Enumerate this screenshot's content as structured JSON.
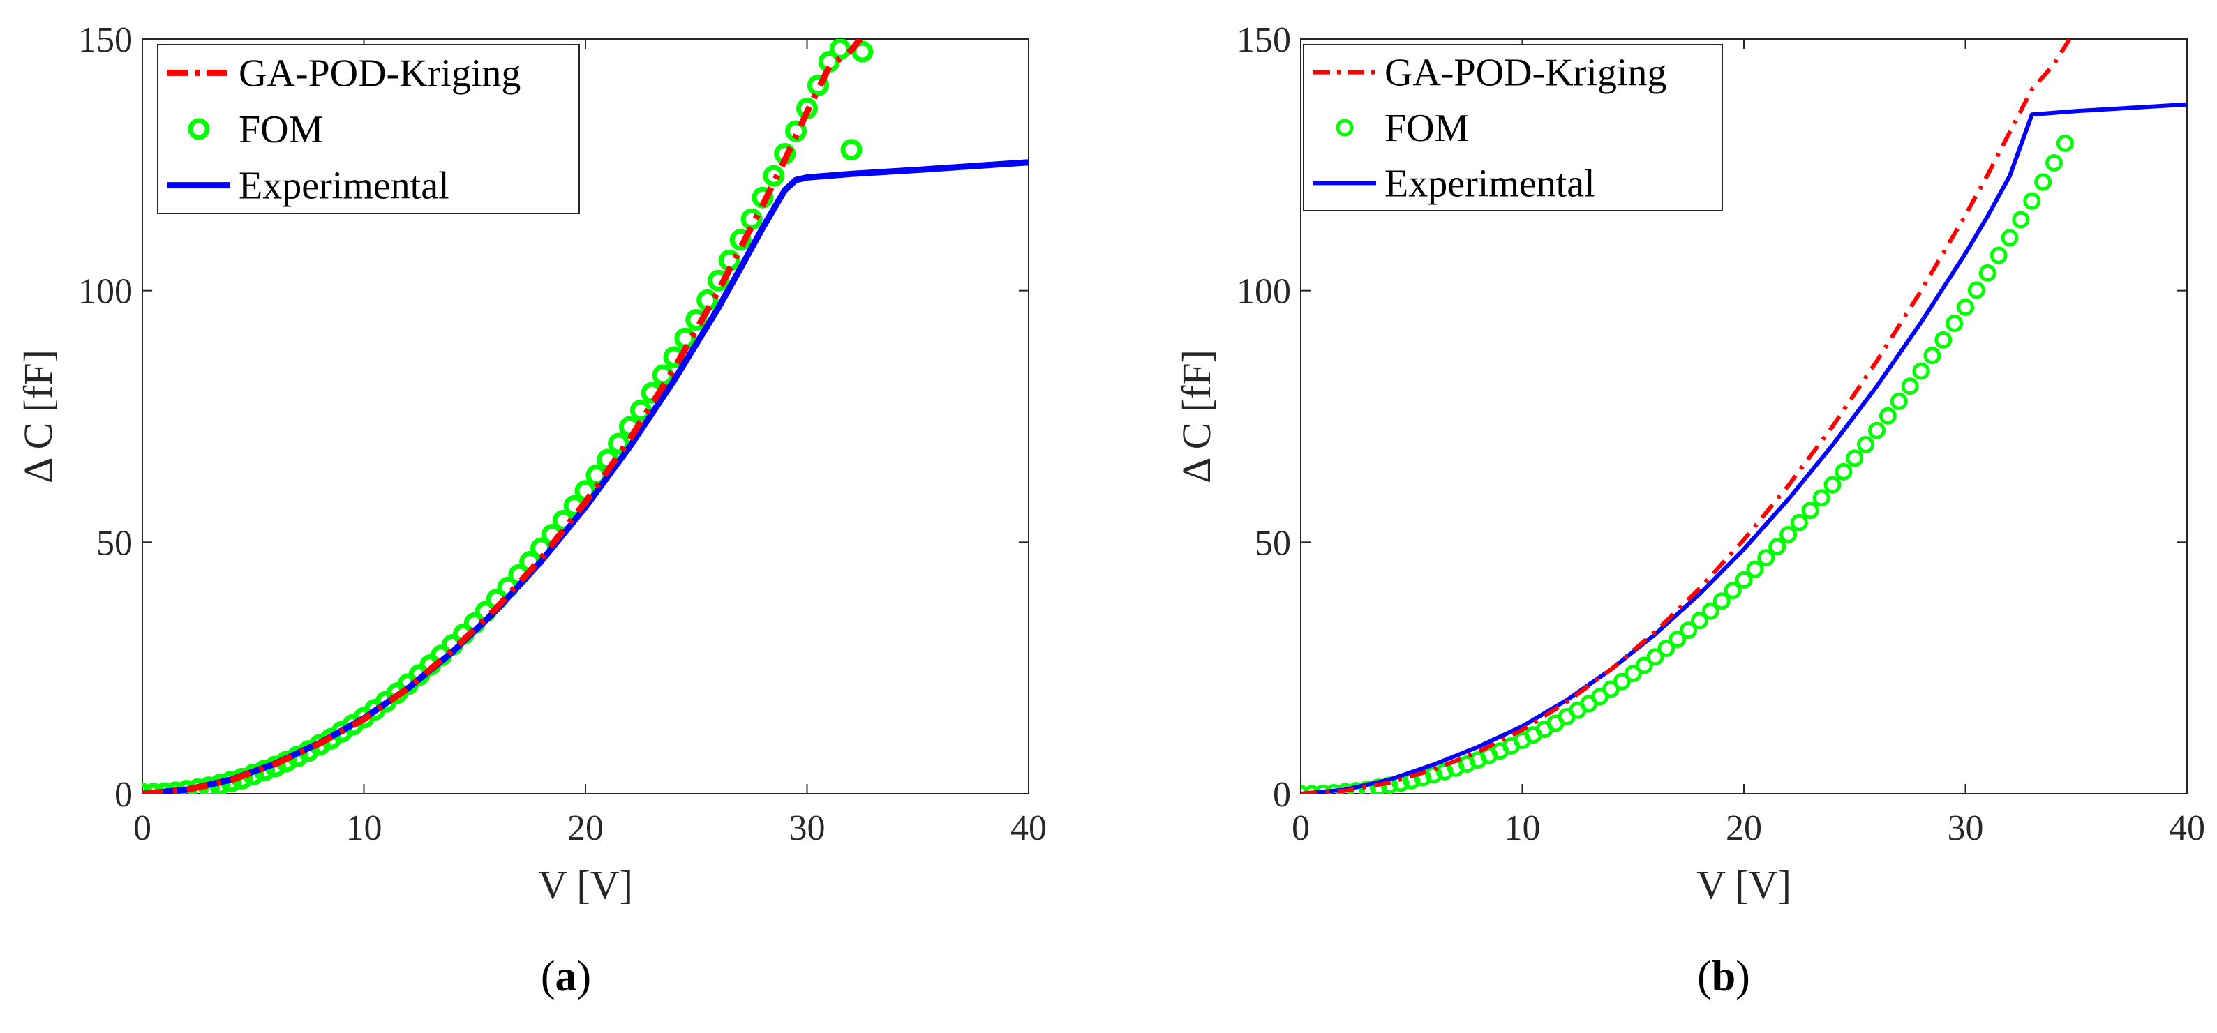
{
  "chart_data": [
    {
      "type": "line",
      "panel_label": "(a)",
      "xlabel": "V [V]",
      "ylabel": "Δ C [fF]",
      "xlim": [
        0,
        40
      ],
      "ylim": [
        0,
        150
      ],
      "xticks": [
        0,
        10,
        20,
        30,
        40
      ],
      "yticks": [
        0,
        50,
        100,
        150
      ],
      "grid": false,
      "legend_position": "top-left",
      "legend_line_width": "thick",
      "series": [
        {
          "name": "GA-POD-Kriging",
          "style": "dash-dot",
          "color": "#ff0000",
          "x": [
            0,
            2,
            4,
            6,
            8,
            10,
            12,
            14,
            16,
            18,
            20,
            22,
            24,
            26,
            28,
            29,
            30,
            31,
            32,
            32.4
          ],
          "y": [
            0,
            0.8,
            2.7,
            5.9,
            10.0,
            14.8,
            21.0,
            28.5,
            37.0,
            46.8,
            58.0,
            70.5,
            84.5,
            100.0,
            117.0,
            126.0,
            135.5,
            144.5,
            147.8,
            150.0
          ]
        },
        {
          "name": "FOM",
          "style": "circle-markers",
          "color": "#00ff00",
          "x": [
            0,
            0.5,
            1,
            1.5,
            2,
            2.5,
            3,
            3.5,
            4,
            4.5,
            5,
            5.5,
            6,
            6.5,
            7,
            7.5,
            8,
            8.5,
            9,
            9.5,
            10,
            10.5,
            11,
            11.5,
            12,
            12.5,
            13,
            13.5,
            14,
            14.5,
            15,
            15.5,
            16,
            16.5,
            17,
            17.5,
            18,
            18.5,
            19,
            19.5,
            20,
            20.5,
            21,
            21.5,
            22,
            22.5,
            23,
            23.5,
            24,
            24.5,
            25,
            25.5,
            26,
            26.5,
            27,
            27.5,
            28,
            28.5,
            29,
            29.5,
            30,
            30.5,
            31,
            31.5,
            32,
            32.5
          ],
          "y": [
            0.0,
            0.0,
            0.1,
            0.3,
            0.6,
            0.9,
            1.3,
            1.8,
            2.4,
            3.0,
            3.8,
            4.6,
            5.4,
            6.4,
            7.4,
            8.5,
            9.7,
            10.9,
            12.3,
            13.7,
            15.1,
            16.7,
            18.3,
            20.0,
            21.8,
            23.6,
            25.6,
            27.5,
            29.6,
            31.7,
            33.9,
            36.2,
            38.6,
            41.0,
            43.5,
            46.1,
            48.8,
            51.5,
            54.3,
            57.2,
            60.2,
            63.3,
            66.4,
            69.6,
            72.9,
            76.2,
            79.7,
            83.2,
            86.8,
            90.5,
            94.2,
            98.1,
            102.0,
            106.0,
            110.1,
            114.2,
            118.5,
            122.8,
            127.2,
            131.7,
            136.2,
            140.8,
            145.5,
            148.0,
            128.0,
            147.5
          ]
        },
        {
          "name": "Experimental",
          "style": "solid",
          "color": "#0000ff",
          "x": [
            0,
            2,
            4,
            6,
            8,
            10,
            12,
            14,
            16,
            18,
            20,
            22,
            24,
            26,
            27,
            28,
            29,
            29.5,
            30,
            32,
            35,
            40
          ],
          "y": [
            0,
            0.8,
            2.8,
            6.0,
            10.1,
            15.0,
            21.0,
            28.2,
            36.6,
            46.2,
            57.0,
            69.0,
            82.2,
            96.6,
            104.5,
            112.5,
            120.0,
            122.0,
            122.5,
            123.2,
            124.0,
            125.5
          ]
        }
      ]
    },
    {
      "type": "line",
      "panel_label": "(b)",
      "xlabel": "V [V]",
      "ylabel": "Δ C [fF]",
      "xlim": [
        0,
        40
      ],
      "ylim": [
        0,
        150
      ],
      "xticks": [
        0,
        10,
        20,
        30,
        40
      ],
      "yticks": [
        0,
        50,
        100,
        150
      ],
      "grid": false,
      "legend_position": "top-left",
      "legend_line_width": "thin",
      "series": [
        {
          "name": "GA-POD-Kriging",
          "style": "dash-dot",
          "color": "#ff0000",
          "x": [
            0,
            2,
            4,
            6,
            8,
            10,
            12,
            14,
            16,
            18,
            20,
            22,
            24,
            26,
            28,
            30,
            31,
            32,
            33,
            34,
            34.7
          ],
          "y": [
            0,
            0.6,
            2.2,
            4.8,
            8.3,
            12.7,
            18.2,
            24.7,
            32.2,
            40.8,
            50.5,
            61.2,
            73.0,
            86.0,
            100.0,
            115.0,
            123.0,
            131.5,
            140.0,
            145.0,
            150.0
          ]
        },
        {
          "name": "FOM",
          "style": "circle-markers",
          "color": "#00ff00",
          "x": [
            0,
            0.5,
            1,
            1.5,
            2,
            2.5,
            3,
            3.5,
            4,
            4.5,
            5,
            5.5,
            6,
            6.5,
            7,
            7.5,
            8,
            8.5,
            9,
            9.5,
            10,
            10.5,
            11,
            11.5,
            12,
            12.5,
            13,
            13.5,
            14,
            14.5,
            15,
            15.5,
            16,
            16.5,
            17,
            17.5,
            18,
            18.5,
            19,
            19.5,
            20,
            20.5,
            21,
            21.5,
            22,
            22.5,
            23,
            23.5,
            24,
            24.5,
            25,
            25.5,
            26,
            26.5,
            27,
            27.5,
            28,
            28.5,
            29,
            29.5,
            30,
            30.5,
            31,
            31.5,
            32,
            32.5,
            33,
            33.5,
            34,
            34.5
          ],
          "y": [
            0.0,
            0.0,
            0.1,
            0.2,
            0.4,
            0.6,
            0.9,
            1.3,
            1.7,
            2.1,
            2.6,
            3.2,
            3.8,
            4.4,
            5.1,
            5.9,
            6.7,
            7.6,
            8.5,
            9.5,
            10.6,
            11.7,
            12.8,
            14.0,
            15.3,
            16.6,
            17.9,
            19.3,
            20.8,
            22.3,
            23.9,
            25.5,
            27.2,
            28.9,
            30.7,
            32.5,
            34.4,
            36.3,
            38.3,
            40.4,
            42.5,
            44.6,
            46.9,
            49.1,
            51.5,
            53.9,
            56.3,
            58.8,
            61.4,
            64.0,
            66.7,
            69.4,
            72.2,
            75.1,
            78.0,
            81.0,
            84.0,
            87.1,
            90.2,
            93.5,
            96.7,
            100.1,
            103.5,
            107.0,
            110.5,
            114.1,
            117.8,
            121.6,
            125.4,
            129.3
          ]
        },
        {
          "name": "Experimental",
          "style": "solid",
          "color": "#0000ff",
          "x": [
            0,
            2,
            4,
            6,
            8,
            10,
            12,
            14,
            16,
            18,
            20,
            22,
            24,
            26,
            28,
            30,
            31,
            32,
            33,
            35,
            40
          ],
          "y": [
            0,
            0.8,
            2.8,
            5.8,
            9.3,
            13.4,
            18.6,
            24.7,
            31.7,
            39.7,
            48.6,
            58.5,
            69.3,
            81.0,
            93.7,
            107.4,
            114.8,
            122.8,
            135.0,
            135.7,
            137.0
          ]
        }
      ]
    }
  ]
}
